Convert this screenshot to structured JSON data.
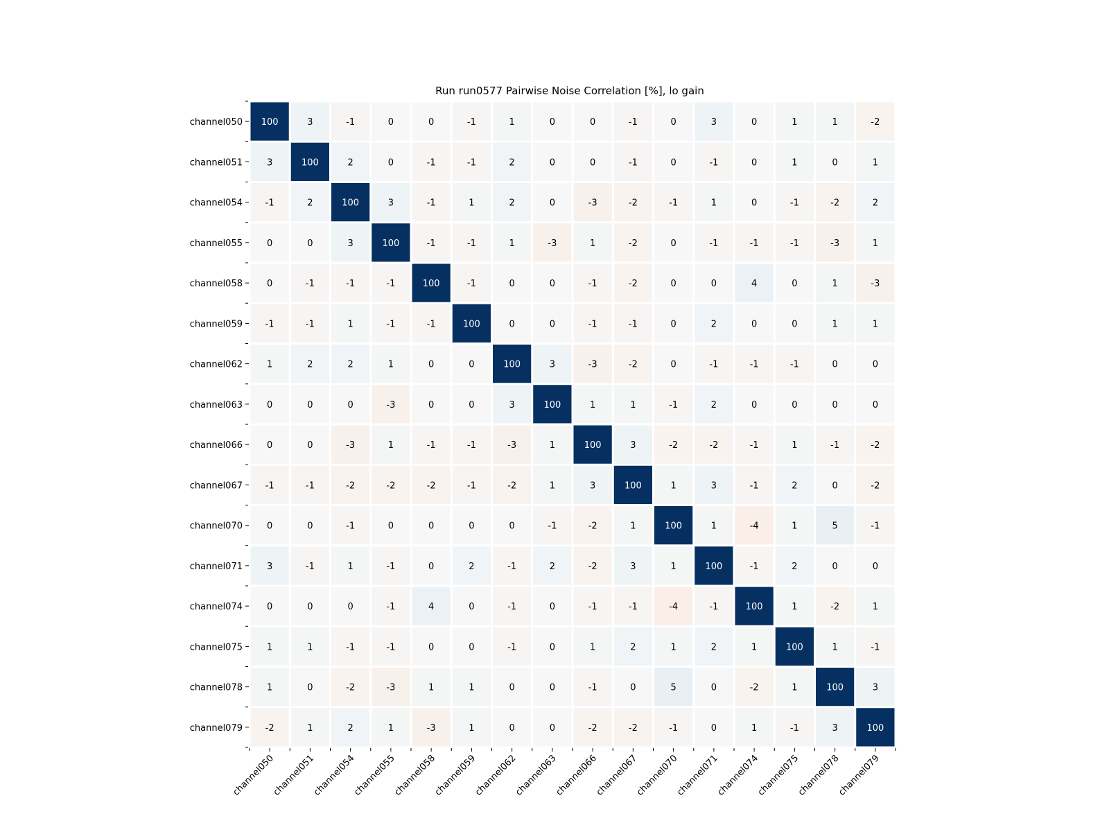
{
  "chart_data": {
    "type": "heatmap",
    "title": "Run run0577 Pairwise Noise Correlation [%], lo gain",
    "xlabel": "",
    "ylabel": "",
    "categories": [
      "channel050",
      "channel051",
      "channel054",
      "channel055",
      "channel058",
      "channel059",
      "channel062",
      "channel063",
      "channel066",
      "channel067",
      "channel070",
      "channel071",
      "channel074",
      "channel075",
      "channel078",
      "channel079"
    ],
    "value_range": [
      -100,
      100
    ],
    "colormap": {
      "negative": "#67001f",
      "neutral": "#f7f7f7",
      "positive": "#053061"
    },
    "matrix": [
      [
        100,
        3,
        -1,
        0,
        0,
        -1,
        1,
        0,
        0,
        -1,
        0,
        3,
        0,
        1,
        1,
        -2
      ],
      [
        3,
        100,
        2,
        0,
        -1,
        -1,
        2,
        0,
        0,
        -1,
        0,
        -1,
        0,
        1,
        0,
        1
      ],
      [
        -1,
        2,
        100,
        3,
        -1,
        1,
        2,
        0,
        -3,
        -2,
        -1,
        1,
        0,
        -1,
        -2,
        2
      ],
      [
        0,
        0,
        3,
        100,
        -1,
        -1,
        1,
        -3,
        1,
        -2,
        0,
        -1,
        -1,
        -1,
        -3,
        1
      ],
      [
        0,
        -1,
        -1,
        -1,
        100,
        -1,
        0,
        0,
        -1,
        -2,
        0,
        0,
        4,
        0,
        1,
        -3
      ],
      [
        -1,
        -1,
        1,
        -1,
        -1,
        100,
        0,
        0,
        -1,
        -1,
        0,
        2,
        0,
        0,
        1,
        1
      ],
      [
        1,
        2,
        2,
        1,
        0,
        0,
        100,
        3,
        -3,
        -2,
        0,
        -1,
        -1,
        -1,
        0,
        0
      ],
      [
        0,
        0,
        0,
        -3,
        0,
        0,
        3,
        100,
        1,
        1,
        -1,
        2,
        0,
        0,
        0,
        0
      ],
      [
        0,
        0,
        -3,
        1,
        -1,
        -1,
        -3,
        1,
        100,
        3,
        -2,
        -2,
        -1,
        1,
        -1,
        -2
      ],
      [
        -1,
        -1,
        -2,
        -2,
        -2,
        -1,
        -2,
        1,
        3,
        100,
        1,
        3,
        -1,
        2,
        0,
        -2
      ],
      [
        0,
        0,
        -1,
        0,
        0,
        0,
        0,
        -1,
        -2,
        1,
        100,
        1,
        -4,
        1,
        5,
        -1
      ],
      [
        3,
        -1,
        1,
        -1,
        0,
        2,
        -1,
        2,
        -2,
        3,
        1,
        100,
        -1,
        2,
        0,
        0
      ],
      [
        0,
        0,
        0,
        -1,
        4,
        0,
        -1,
        0,
        -1,
        -1,
        -4,
        -1,
        100,
        1,
        -2,
        1
      ],
      [
        1,
        1,
        -1,
        -1,
        0,
        0,
        -1,
        0,
        1,
        2,
        1,
        2,
        1,
        100,
        1,
        -1
      ],
      [
        1,
        0,
        -2,
        -3,
        1,
        1,
        0,
        0,
        -1,
        0,
        5,
        0,
        -2,
        1,
        100,
        3
      ],
      [
        -2,
        1,
        2,
        1,
        -3,
        1,
        0,
        0,
        -2,
        -2,
        -1,
        0,
        1,
        -1,
        3,
        100
      ]
    ],
    "annotations": true,
    "grid": false
  }
}
